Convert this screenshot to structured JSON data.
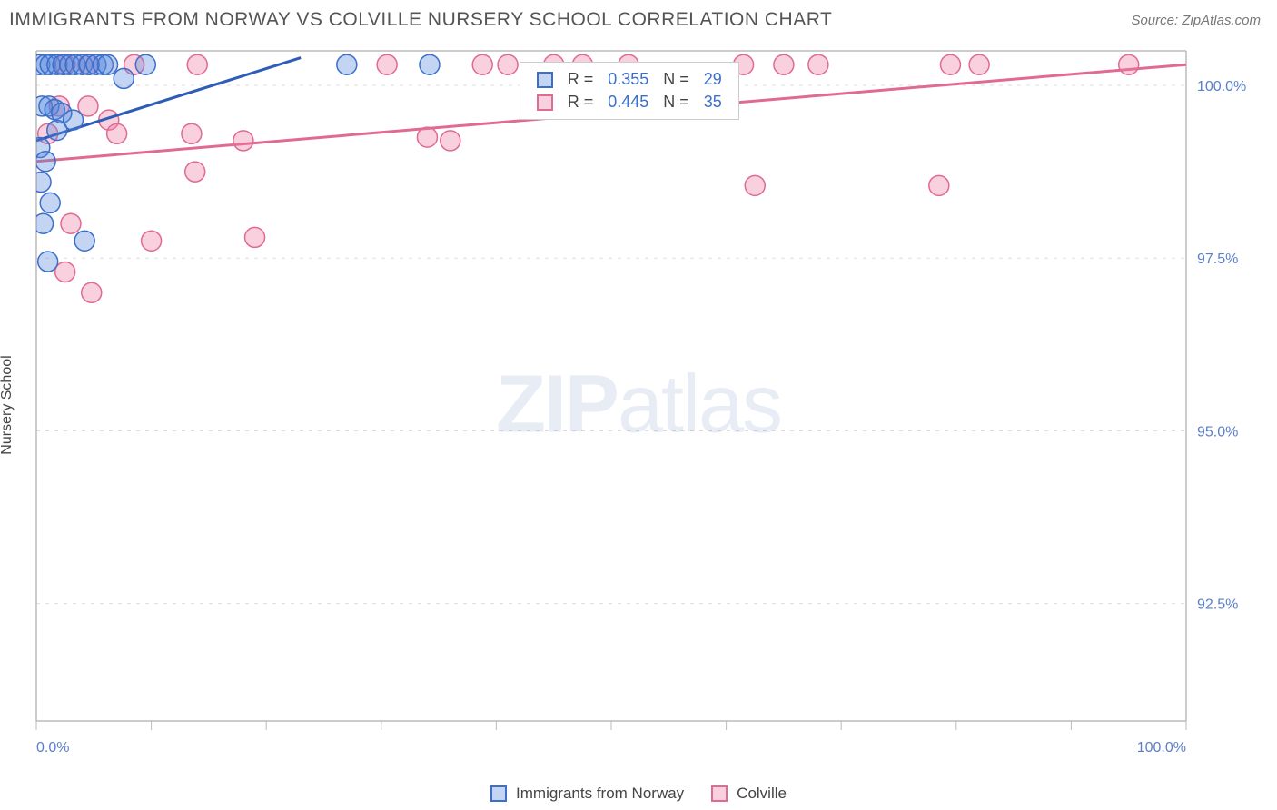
{
  "header": {
    "title": "IMMIGRANTS FROM NORWAY VS COLVILLE NURSERY SCHOOL CORRELATION CHART",
    "source": "Source: ZipAtlas.com"
  },
  "watermark": {
    "zip": "ZIP",
    "atlas": "atlas"
  },
  "chart": {
    "type": "scatter",
    "background_color": "#ffffff",
    "grid_color": "#dddddd",
    "plot_border_color": "#bbbbbb",
    "font_family": "Arial",
    "ylabel": "Nursery School",
    "ylabel_fontsize": 16,
    "ylabel_color": "#444444",
    "xlim": [
      0,
      100
    ],
    "ylim": [
      90.8,
      100.5
    ],
    "xtick_positions": [
      0,
      10,
      20,
      30,
      40,
      50,
      60,
      70,
      80,
      90,
      100
    ],
    "xtick_labels": {
      "0": "0.0%",
      "100": "100.0%"
    },
    "ytick_positions": [
      92.5,
      95.0,
      97.5,
      100.0
    ],
    "ytick_labels": [
      "92.5%",
      "95.0%",
      "97.5%",
      "100.0%"
    ],
    "tick_label_color": "#5a7fc9",
    "tick_label_fontsize": 16,
    "marker_radius": 11,
    "marker_stroke_width": 1.5,
    "line_width": 3,
    "series": [
      {
        "name": "Immigrants from Norway",
        "color_fill": "rgba(85,136,221,0.35)",
        "color_stroke": "#3b6fc9",
        "line_color": "#2d5db8",
        "R": "0.355",
        "N": "29",
        "regression": {
          "x1": 0,
          "y1": 99.2,
          "x2": 23,
          "y2": 100.4
        },
        "points": [
          [
            0.3,
            100.3
          ],
          [
            0.8,
            100.3
          ],
          [
            1.2,
            100.3
          ],
          [
            1.8,
            100.3
          ],
          [
            2.3,
            100.3
          ],
          [
            2.9,
            100.3
          ],
          [
            3.4,
            100.3
          ],
          [
            4.0,
            100.3
          ],
          [
            4.6,
            100.3
          ],
          [
            5.2,
            100.3
          ],
          [
            5.8,
            100.3
          ],
          [
            6.2,
            100.3
          ],
          [
            7.6,
            100.1
          ],
          [
            9.5,
            100.3
          ],
          [
            27.0,
            100.3
          ],
          [
            34.2,
            100.3
          ],
          [
            0.5,
            99.7
          ],
          [
            1.1,
            99.7
          ],
          [
            1.6,
            99.65
          ],
          [
            2.2,
            99.6
          ],
          [
            3.2,
            99.5
          ],
          [
            1.8,
            99.35
          ],
          [
            0.3,
            99.1
          ],
          [
            0.8,
            98.9
          ],
          [
            0.4,
            98.6
          ],
          [
            1.2,
            98.3
          ],
          [
            0.6,
            98.0
          ],
          [
            4.2,
            97.75
          ],
          [
            1.0,
            97.45
          ]
        ]
      },
      {
        "name": "Colville",
        "color_fill": "rgba(235,120,160,0.35)",
        "color_stroke": "#e06a92",
        "line_color": "#e06a92",
        "R": "0.445",
        "N": "35",
        "regression": {
          "x1": 0,
          "y1": 98.9,
          "x2": 100,
          "y2": 100.3
        },
        "points": [
          [
            2.5,
            100.3
          ],
          [
            4.5,
            100.3
          ],
          [
            8.5,
            100.3
          ],
          [
            14.0,
            100.3
          ],
          [
            30.5,
            100.3
          ],
          [
            38.8,
            100.3
          ],
          [
            41.0,
            100.3
          ],
          [
            45.0,
            100.3
          ],
          [
            47.5,
            100.3
          ],
          [
            51.5,
            100.3
          ],
          [
            61.5,
            100.3
          ],
          [
            65.0,
            100.3
          ],
          [
            68.0,
            100.3
          ],
          [
            79.5,
            100.3
          ],
          [
            82.0,
            100.3
          ],
          [
            95.0,
            100.3
          ],
          [
            2.0,
            99.7
          ],
          [
            4.5,
            99.7
          ],
          [
            52.0,
            99.7
          ],
          [
            56.0,
            99.7
          ],
          [
            6.3,
            99.5
          ],
          [
            1.0,
            99.3
          ],
          [
            7.0,
            99.3
          ],
          [
            13.5,
            99.3
          ],
          [
            18.0,
            99.2
          ],
          [
            34.0,
            99.25
          ],
          [
            36.0,
            99.2
          ],
          [
            13.8,
            98.75
          ],
          [
            3.0,
            98.0
          ],
          [
            62.5,
            98.55
          ],
          [
            78.5,
            98.55
          ],
          [
            10.0,
            97.75
          ],
          [
            19.0,
            97.8
          ],
          [
            2.5,
            97.3
          ],
          [
            4.8,
            97.0
          ]
        ]
      }
    ],
    "legend_bottom": {
      "left_label": "Immigrants from Norway",
      "right_label": "Colville"
    },
    "statbox": {
      "r_label": "R =",
      "n_label": "N ="
    }
  }
}
